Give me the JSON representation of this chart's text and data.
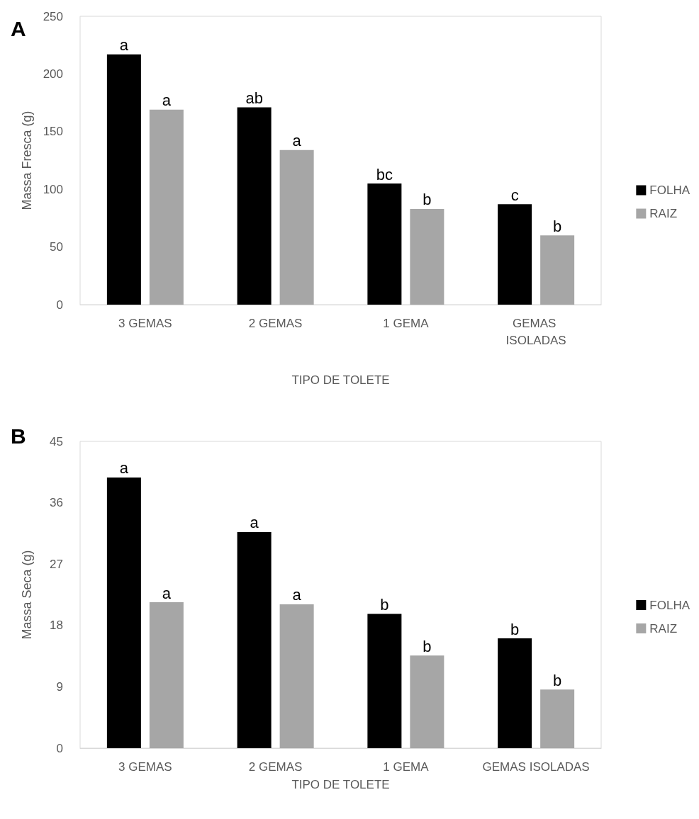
{
  "chart_data": [
    {
      "type": "bar",
      "title": "A",
      "xlabel": "TIPO DE TOLETE",
      "ylabel": "Massa Fresca (g)",
      "categories": [
        "3 GEMAS",
        "2 GEMAS",
        "1 GEMA",
        "GEMAS ISOLADAS"
      ],
      "series": [
        {
          "name": "FOLHA",
          "color": "#000000",
          "values": [
            217,
            171,
            105,
            87
          ],
          "value_labels": [
            "a",
            "ab",
            "bc",
            "c"
          ]
        },
        {
          "name": "RAIZ",
          "color": "#a6a6a6",
          "values": [
            169,
            134,
            83,
            60
          ],
          "value_labels": [
            "a",
            "a",
            "b",
            "b"
          ]
        }
      ],
      "ylim": [
        0,
        250
      ],
      "yticks": [
        0,
        50,
        100,
        150,
        200,
        250
      ],
      "grid": false,
      "legend": "right"
    },
    {
      "type": "bar",
      "title": "B",
      "xlabel": "TIPO DE TOLETE",
      "ylabel": "Massa Seca (g)",
      "categories": [
        "3 GEMAS",
        "2 GEMAS",
        "1 GEMA",
        "GEMAS ISOLADAS"
      ],
      "series": [
        {
          "name": "FOLHA",
          "color": "#000000",
          "values": [
            39.7,
            31.7,
            19.7,
            16.1
          ],
          "value_labels": [
            "a",
            "a",
            "b",
            "b"
          ]
        },
        {
          "name": "RAIZ",
          "color": "#a6a6a6",
          "values": [
            21.4,
            21.1,
            13.6,
            8.6
          ],
          "value_labels": [
            "a",
            "a",
            "b",
            "b"
          ]
        }
      ],
      "ylim": [
        0,
        45
      ],
      "yticks": [
        0,
        9,
        18,
        27,
        36,
        45
      ],
      "grid": false,
      "legend": "right"
    }
  ]
}
